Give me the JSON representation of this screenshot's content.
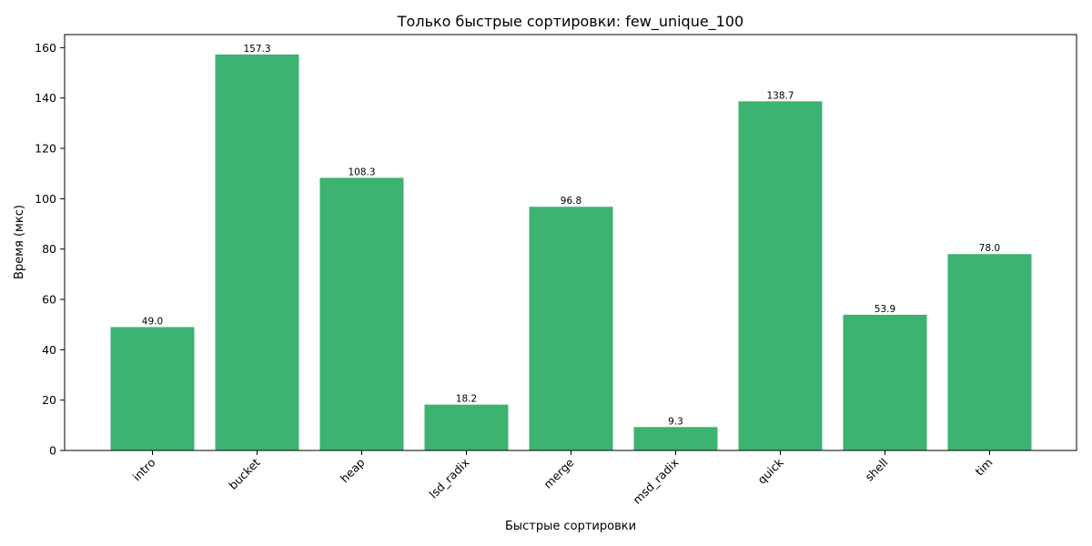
{
  "chart_data": {
    "type": "bar",
    "title": "Только быстрые сортировки: few_unique_100",
    "xlabel": "Быстрые сортировки",
    "ylabel": "Время (мкс)",
    "categories": [
      "intro",
      "bucket",
      "heap",
      "lsd_radix",
      "merge",
      "msd_radix",
      "quick",
      "shell",
      "tim"
    ],
    "values": [
      49.0,
      157.3,
      108.3,
      18.2,
      96.8,
      9.3,
      138.7,
      53.9,
      78.0
    ],
    "value_labels": [
      "49.0",
      "157.3",
      "108.3",
      "18.2",
      "96.8",
      "9.3",
      "138.7",
      "53.9",
      "78.0"
    ],
    "ylim": [
      0,
      165.2
    ],
    "yticks": [
      0,
      20,
      40,
      60,
      80,
      100,
      120,
      140,
      160
    ],
    "bar_color": "#3cb371",
    "grid": false,
    "legend": "none"
  }
}
